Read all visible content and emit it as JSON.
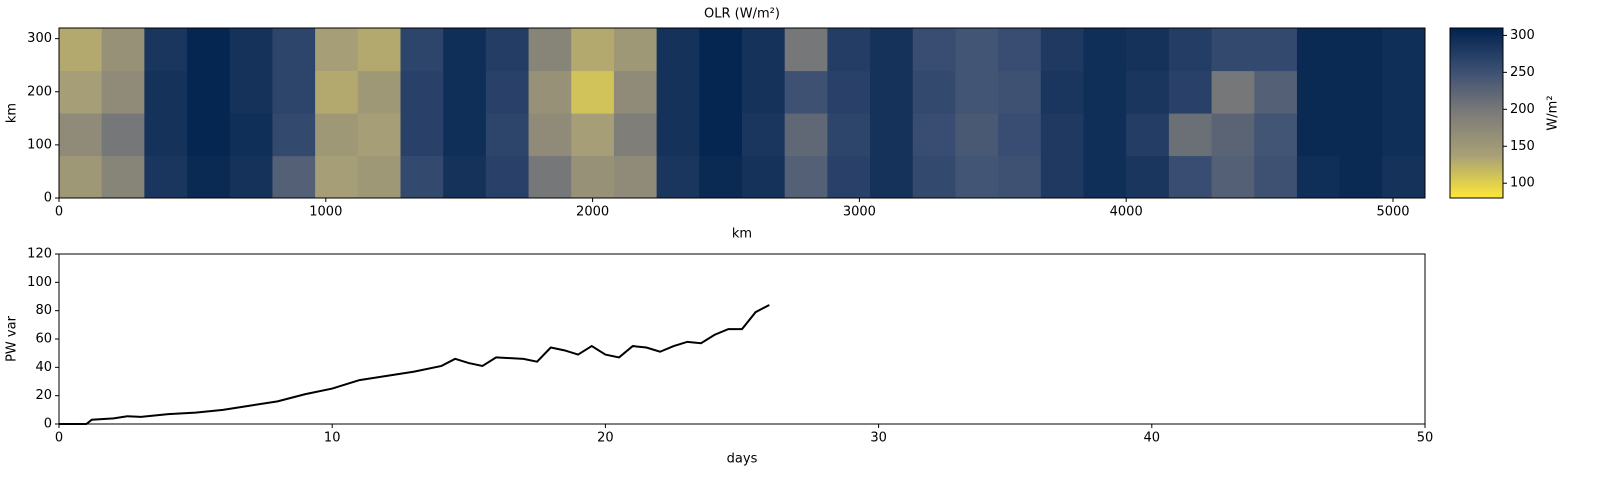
{
  "chart_data": [
    {
      "type": "heatmap",
      "title": "OLR (W/m²)",
      "xlabel": "km",
      "ylabel": "km",
      "xlim": [
        0,
        5120
      ],
      "ylim": [
        0,
        320
      ],
      "xticks": [
        0,
        1000,
        2000,
        3000,
        4000,
        5000
      ],
      "yticks": [
        0,
        100,
        200,
        300
      ],
      "colorbar_label": "W/m²",
      "clim": [
        80,
        310
      ],
      "cticks": [
        100,
        150,
        200,
        250,
        300
      ],
      "colormap": [
        "#fee838",
        "#a8a077",
        "#7c7b78",
        "#3b4f73",
        "#00224e"
      ],
      "z": [
        [
          150,
          180,
          285,
          300,
          290,
          230,
          140,
          150,
          260,
          290,
          270,
          200,
          160,
          170,
          285,
          300,
          290,
          230,
          270,
          290,
          260,
          245,
          250,
          280,
          295,
          285,
          255,
          230,
          250,
          295,
          300,
          290
        ],
        [
          170,
          200,
          290,
          305,
          295,
          260,
          150,
          140,
          270,
          295,
          265,
          170,
          140,
          190,
          290,
          305,
          285,
          220,
          265,
          290,
          255,
          240,
          255,
          280,
          295,
          275,
          210,
          225,
          245,
          300,
          300,
          295
        ],
        [
          140,
          170,
          290,
          305,
          290,
          265,
          130,
          150,
          270,
          295,
          270,
          160,
          110,
          170,
          290,
          305,
          290,
          250,
          270,
          290,
          260,
          245,
          250,
          285,
          295,
          285,
          270,
          200,
          230,
          300,
          300,
          295
        ],
        [
          130,
          160,
          285,
          305,
          290,
          265,
          140,
          130,
          265,
          295,
          275,
          180,
          130,
          150,
          290,
          305,
          290,
          200,
          275,
          290,
          255,
          245,
          255,
          280,
          295,
          290,
          275,
          260,
          260,
          300,
          300,
          295
        ]
      ]
    },
    {
      "type": "line",
      "xlabel": "days",
      "ylabel": "PW var",
      "xlim": [
        0,
        50
      ],
      "ylim": [
        0,
        120
      ],
      "xticks": [
        0,
        10,
        20,
        30,
        40,
        50
      ],
      "yticks": [
        0,
        20,
        40,
        60,
        80,
        100,
        120
      ],
      "color": "#000000",
      "x": [
        0,
        1,
        1.2,
        2,
        2.5,
        3,
        4,
        5,
        6,
        7,
        8,
        9,
        10,
        11,
        12,
        13,
        14,
        14.5,
        15,
        15.5,
        16,
        17,
        17.5,
        18,
        18.5,
        19,
        19.5,
        20,
        20.5,
        21,
        21.5,
        22,
        22.5,
        23,
        23.5,
        24,
        24.5,
        25,
        25.5,
        26
      ],
      "values": [
        0,
        0,
        3,
        4,
        5.5,
        5,
        7,
        8,
        10,
        13,
        16,
        21,
        25,
        31,
        34,
        37,
        41,
        46,
        43,
        41,
        47,
        46,
        44,
        54,
        52,
        49,
        55,
        49,
        47,
        55,
        54,
        51,
        55,
        58,
        57,
        63,
        67,
        67,
        79,
        84
      ]
    }
  ]
}
